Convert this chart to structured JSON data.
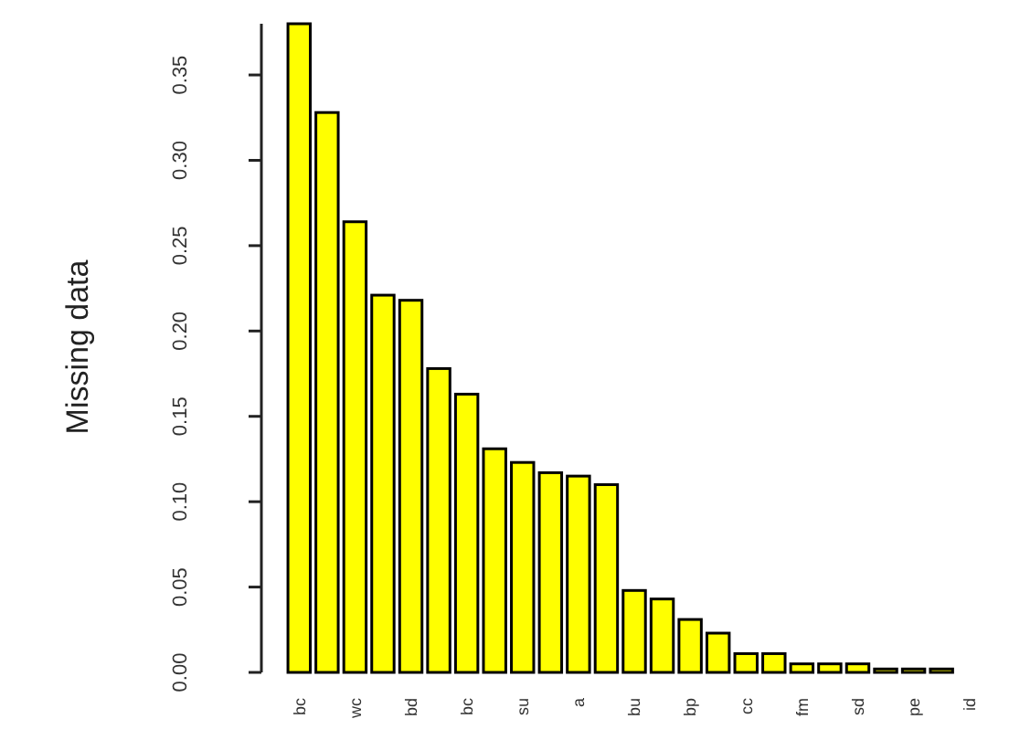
{
  "chart_data": {
    "type": "bar",
    "ylabel": "Missing data",
    "categories": [
      "bc",
      null,
      "wc",
      null,
      "bd",
      null,
      "bc",
      null,
      "su",
      null,
      "a",
      null,
      "bu",
      null,
      "bp",
      null,
      "cc",
      null,
      "fm",
      null,
      "sd",
      null,
      "pe",
      null,
      "id"
    ],
    "values": [
      0.38,
      0.328,
      0.264,
      0.221,
      0.218,
      0.178,
      0.163,
      0.131,
      0.123,
      0.117,
      0.115,
      0.11,
      0.048,
      0.043,
      0.031,
      0.023,
      0.011,
      0.011,
      0.005,
      0.005,
      0.005,
      0.002,
      0.002,
      0.002,
      0
    ],
    "color": "#ffff00",
    "ylim": [
      0,
      0.38
    ],
    "yticks": [
      {
        "value": 0,
        "label": "0.00"
      },
      {
        "value": 0.05,
        "label": "0.05"
      },
      {
        "value": 0.1,
        "label": "0.10"
      },
      {
        "value": 0.15,
        "label": "0.15"
      },
      {
        "value": 0.2,
        "label": "0.20"
      },
      {
        "value": 0.25,
        "label": "0.25"
      },
      {
        "value": 0.3,
        "label": "0.30"
      },
      {
        "value": 0.35,
        "label": "0.35"
      }
    ]
  }
}
